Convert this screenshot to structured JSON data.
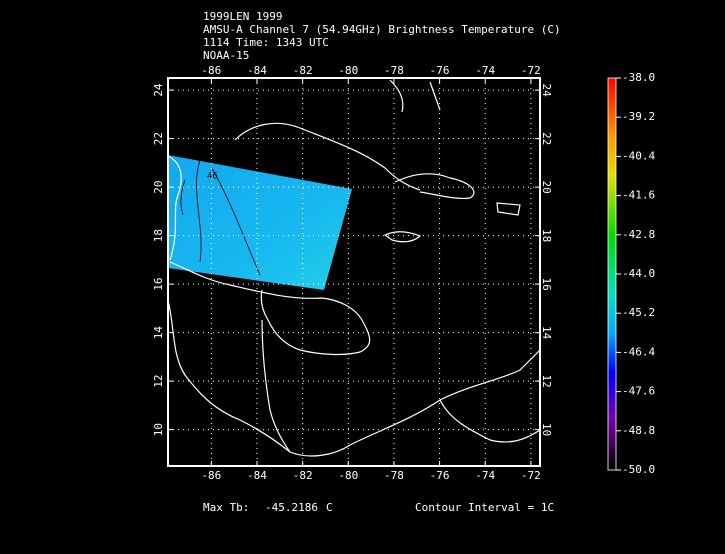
{
  "header": {
    "lines": [
      "1999LEN 1999",
      "AMSU-A Channel 7 (54.94GHz) Brightness Temperature (C)",
      "1114 Time: 1343 UTC",
      "NOAA-15"
    ]
  },
  "map": {
    "xlim": [
      -87.9,
      -71.6
    ],
    "ylim": [
      8.5,
      24.5
    ],
    "xticks": [
      -86,
      -84,
      -82,
      -80,
      -78,
      -76,
      -74,
      -72
    ],
    "yticks": [
      10,
      12,
      14,
      16,
      18,
      20,
      22,
      24
    ],
    "grid": true,
    "contour_label": "46"
  },
  "colorbar": {
    "lim": [
      -50,
      -38
    ],
    "ticks": [
      {
        "value": -38,
        "label": "-38.0"
      },
      -39.2,
      -40.4,
      -41.6,
      -42.8,
      {
        "value": -44,
        "label": "-44.0"
      },
      -45.2,
      -46.4,
      -47.6,
      -48.8,
      {
        "value": -50,
        "label": "-50.0"
      }
    ]
  },
  "footer": {
    "max_label": "Max Tb:",
    "max_value": "-45.2186",
    "max_unit": "C",
    "contour_interval": "Contour Interval = 1C"
  }
}
